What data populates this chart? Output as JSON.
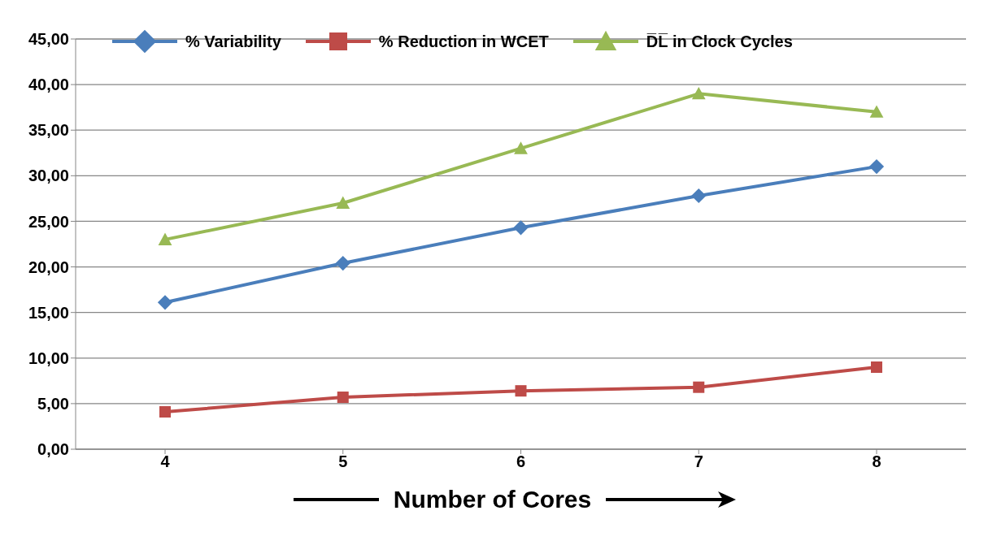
{
  "chart_data": {
    "type": "line",
    "xlabel": "Number of Cores",
    "categories": [
      "4",
      "5",
      "6",
      "7",
      "8"
    ],
    "series": [
      {
        "name": "% Variability",
        "color": "#4a7ebb",
        "marker": "diamond",
        "values": [
          16.1,
          20.4,
          24.3,
          27.8,
          31.0
        ]
      },
      {
        "name": "%  Reduction in WCET",
        "color": "#be4b48",
        "marker": "square",
        "values": [
          4.1,
          5.7,
          6.4,
          6.8,
          9.0
        ]
      },
      {
        "name": "D̅L̅ in Clock Cycles",
        "color": "#98b954",
        "marker": "triangle",
        "values": [
          23.0,
          27.0,
          33.0,
          39.0,
          37.0
        ]
      }
    ],
    "ylim": [
      0,
      45
    ],
    "yticks": [
      {
        "value": 0,
        "label": "0,00"
      },
      {
        "value": 5,
        "label": "5,00"
      },
      {
        "value": 10,
        "label": "10,00"
      },
      {
        "value": 15,
        "label": "15,00"
      },
      {
        "value": 20,
        "label": "20,00"
      },
      {
        "value": 25,
        "label": "25,00"
      },
      {
        "value": 30,
        "label": "30,00"
      },
      {
        "value": 35,
        "label": "35,00"
      },
      {
        "value": 40,
        "label": "40,00"
      },
      {
        "value": 45,
        "label": "45,00"
      }
    ],
    "grid": "y",
    "legend": "top",
    "line_style": "solid"
  }
}
